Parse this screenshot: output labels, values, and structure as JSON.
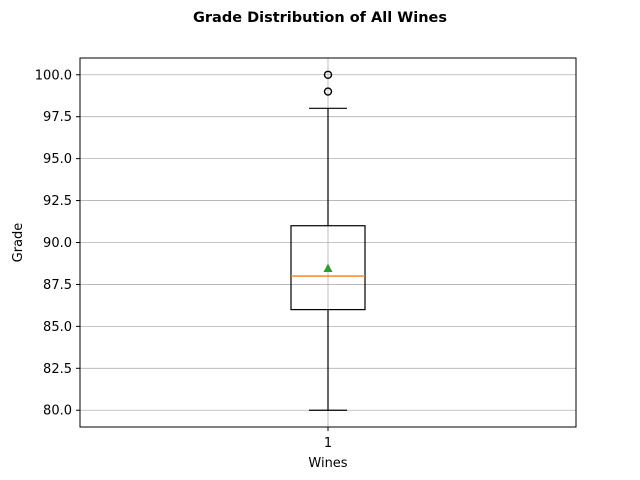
{
  "chart_data": {
    "type": "box",
    "title": "Grade Distribution of All Wines",
    "xlabel": "Wines",
    "ylabel": "Grade",
    "categories": [
      "1"
    ],
    "ylim": [
      79.0,
      101.0
    ],
    "yticks": [
      80.0,
      82.5,
      85.0,
      87.5,
      90.0,
      92.5,
      95.0,
      97.5,
      100.0
    ],
    "ytick_labels": [
      "80.0",
      "82.5",
      "85.0",
      "87.5",
      "90.0",
      "92.5",
      "95.0",
      "97.5",
      "100.0"
    ],
    "grid": true,
    "boxes": [
      {
        "category": "1",
        "whisker_low": 80.0,
        "q1": 86.0,
        "median": 88.0,
        "q3": 91.0,
        "whisker_high": 98.0,
        "mean": 88.45,
        "outliers": [
          99.0,
          100.0
        ]
      }
    ],
    "colors": {
      "box": "#000000",
      "median": "#ff7f0e",
      "mean": "#2ca02c",
      "grid": "#b0b0b0"
    }
  }
}
